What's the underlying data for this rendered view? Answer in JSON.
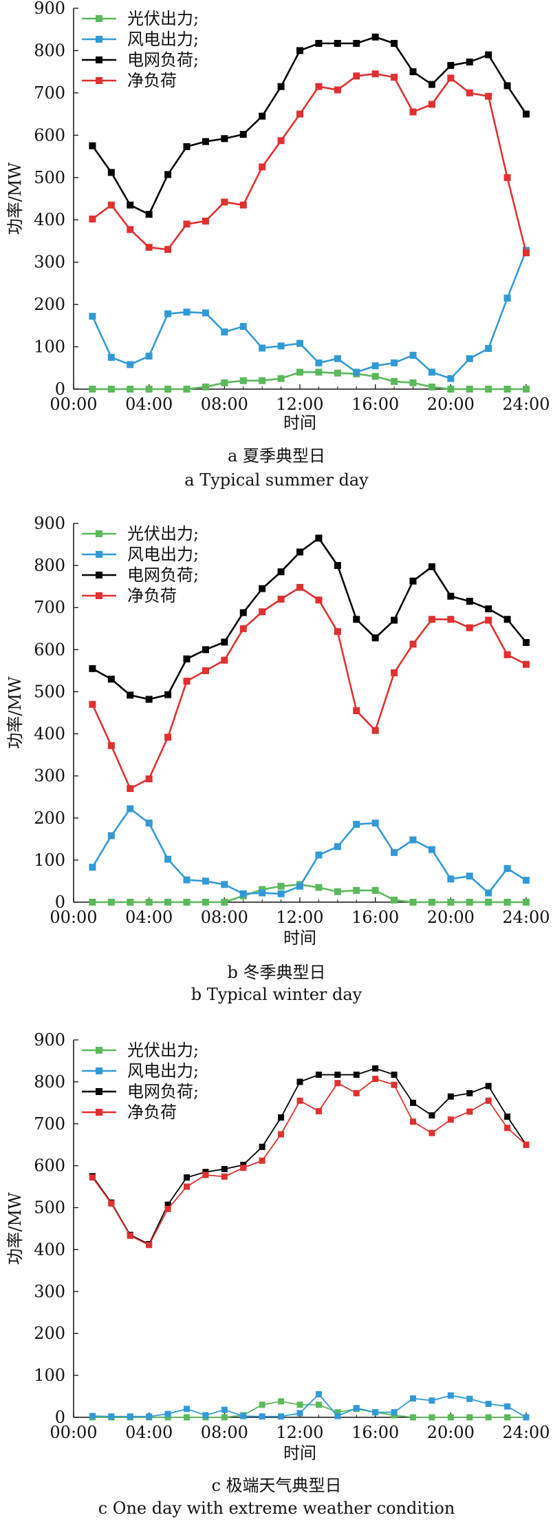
{
  "chart_data": [
    {
      "type": "line",
      "xlabel": "时间",
      "ylabel": "功率/MW",
      "xlim": [
        "00:00",
        "24:00"
      ],
      "ylim": [
        0,
        900
      ],
      "yticks": [
        0,
        100,
        200,
        300,
        400,
        500,
        600,
        700,
        800,
        900
      ],
      "xtick_labels": [
        "00:00",
        "04:00",
        "08:00",
        "12:00",
        "16:00",
        "20:00",
        "24:00"
      ],
      "x_hours": [
        1,
        2,
        3,
        4,
        5,
        6,
        7,
        8,
        9,
        10,
        11,
        12,
        13,
        14,
        15,
        16,
        17,
        18,
        19,
        20,
        21,
        22,
        23,
        24
      ],
      "legend_position": "top-left",
      "grid": false,
      "caption_cn": "a  夏季典型日",
      "caption_en": "a  Typical summer day",
      "series": [
        {
          "name": "光伏出力;",
          "color": "#5cb85c",
          "values": [
            0,
            0,
            0,
            0,
            0,
            0,
            5,
            15,
            20,
            20,
            25,
            40,
            40,
            38,
            36,
            30,
            18,
            15,
            5,
            0,
            0,
            0,
            0,
            0
          ]
        },
        {
          "name": "风电出力;",
          "color": "#3399d6",
          "values": [
            172,
            75,
            58,
            78,
            178,
            182,
            180,
            135,
            148,
            97,
            102,
            108,
            62,
            72,
            40,
            55,
            62,
            80,
            40,
            25,
            72,
            96,
            215,
            328
          ]
        },
        {
          "name": "电网负荷;",
          "color": "#000000",
          "values": [
            575,
            512,
            435,
            413,
            507,
            573,
            585,
            592,
            602,
            645,
            715,
            800,
            817,
            817,
            817,
            832,
            817,
            750,
            720,
            765,
            773,
            790,
            717,
            650
          ]
        },
        {
          "name": "净负荷",
          "color": "#e03030",
          "values": [
            402,
            435,
            377,
            335,
            330,
            390,
            397,
            442,
            435,
            525,
            587,
            650,
            715,
            707,
            740,
            745,
            737,
            655,
            673,
            735,
            700,
            692,
            500,
            322
          ]
        }
      ]
    },
    {
      "type": "line",
      "xlabel": "时间",
      "ylabel": "功率/MW",
      "xlim": [
        "00:00",
        "24:00"
      ],
      "ylim": [
        0,
        900
      ],
      "yticks": [
        0,
        100,
        200,
        300,
        400,
        500,
        600,
        700,
        800,
        900
      ],
      "xtick_labels": [
        "00:00",
        "04:00",
        "08:00",
        "12:00",
        "16:00",
        "20:00",
        "24:00"
      ],
      "x_hours": [
        1,
        2,
        3,
        4,
        5,
        6,
        7,
        8,
        9,
        10,
        11,
        12,
        13,
        14,
        15,
        16,
        17,
        18,
        19,
        20,
        21,
        22,
        23,
        24
      ],
      "legend_position": "top-left",
      "grid": false,
      "caption_cn": "b  冬季典型日",
      "caption_en": "b  Typical winter day",
      "series": [
        {
          "name": "光伏出力;",
          "color": "#5cb85c",
          "values": [
            0,
            0,
            0,
            0,
            0,
            0,
            0,
            0,
            15,
            30,
            38,
            42,
            35,
            25,
            28,
            28,
            5,
            0,
            0,
            0,
            0,
            0,
            0,
            0
          ]
        },
        {
          "name": "风电出力;",
          "color": "#3399d6",
          "values": [
            83,
            158,
            222,
            188,
            102,
            53,
            50,
            42,
            20,
            22,
            20,
            38,
            112,
            132,
            185,
            188,
            118,
            148,
            125,
            55,
            62,
            22,
            80,
            52
          ]
        },
        {
          "name": "电网负荷;",
          "color": "#000000",
          "values": [
            555,
            530,
            492,
            482,
            493,
            578,
            600,
            618,
            688,
            745,
            785,
            832,
            865,
            800,
            672,
            628,
            670,
            763,
            797,
            727,
            715,
            697,
            672,
            617
          ]
        },
        {
          "name": "净负荷",
          "color": "#e03030",
          "values": [
            470,
            372,
            270,
            293,
            392,
            525,
            550,
            575,
            650,
            690,
            720,
            748,
            718,
            643,
            455,
            408,
            545,
            613,
            672,
            672,
            652,
            670,
            588,
            565
          ]
        }
      ]
    },
    {
      "type": "line",
      "xlabel": "时间",
      "ylabel": "功率/MW",
      "xlim": [
        "00:00",
        "24:00"
      ],
      "ylim": [
        0,
        900
      ],
      "yticks": [
        0,
        100,
        200,
        300,
        400,
        500,
        600,
        700,
        800,
        900
      ],
      "xtick_labels": [
        "00:00",
        "04:00",
        "08:00",
        "12:00",
        "16:00",
        "20:00",
        "24:00"
      ],
      "x_hours": [
        1,
        2,
        3,
        4,
        5,
        6,
        7,
        8,
        9,
        10,
        11,
        12,
        13,
        14,
        15,
        16,
        17,
        18,
        19,
        20,
        21,
        22,
        23,
        24
      ],
      "legend_position": "top-left",
      "grid": false,
      "caption_cn": "c  极端天气典型日",
      "caption_en": "c  One day with extreme weather condition",
      "series": [
        {
          "name": "光伏出力;",
          "color": "#5cb85c",
          "values": [
            0,
            0,
            0,
            0,
            0,
            0,
            0,
            0,
            5,
            30,
            38,
            30,
            30,
            12,
            20,
            12,
            5,
            0,
            0,
            0,
            0,
            0,
            0,
            0
          ]
        },
        {
          "name": "风电出力;",
          "color": "#3399d6",
          "values": [
            3,
            2,
            2,
            2,
            8,
            20,
            5,
            18,
            3,
            2,
            2,
            10,
            55,
            3,
            22,
            12,
            12,
            45,
            40,
            52,
            44,
            32,
            26,
            0
          ]
        },
        {
          "name": "电网负荷;",
          "color": "#000000",
          "values": [
            575,
            512,
            435,
            413,
            507,
            572,
            585,
            592,
            602,
            645,
            715,
            800,
            817,
            817,
            817,
            832,
            817,
            750,
            720,
            765,
            773,
            790,
            717,
            650
          ]
        },
        {
          "name": "净负荷",
          "color": "#e03030",
          "values": [
            572,
            510,
            433,
            411,
            497,
            550,
            578,
            574,
            595,
            612,
            675,
            755,
            730,
            797,
            773,
            807,
            793,
            705,
            678,
            710,
            729,
            755,
            690,
            650
          ]
        }
      ]
    }
  ]
}
